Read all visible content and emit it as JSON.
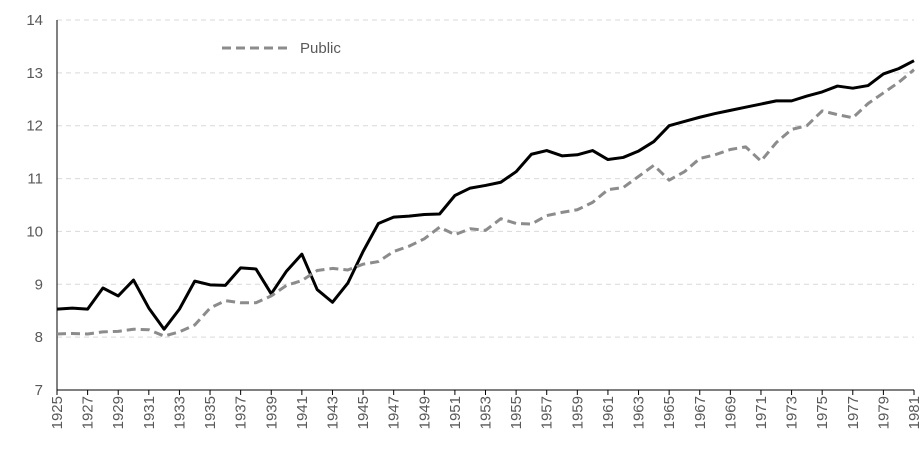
{
  "chart_data": {
    "type": "line",
    "x": [
      1925,
      1926,
      1927,
      1928,
      1929,
      1930,
      1931,
      1932,
      1933,
      1934,
      1935,
      1936,
      1937,
      1938,
      1939,
      1940,
      1941,
      1942,
      1943,
      1944,
      1945,
      1946,
      1947,
      1948,
      1949,
      1950,
      1951,
      1952,
      1953,
      1954,
      1955,
      1956,
      1957,
      1958,
      1959,
      1960,
      1961,
      1962,
      1963,
      1964,
      1965,
      1966,
      1967,
      1968,
      1969,
      1970,
      1971,
      1972,
      1973,
      1974,
      1975,
      1976,
      1977,
      1978,
      1979,
      1980,
      1981
    ],
    "series": [
      {
        "color": "#000000",
        "dashed": false,
        "values": [
          8.53,
          8.55,
          8.53,
          8.93,
          8.78,
          9.08,
          8.55,
          8.15,
          8.53,
          9.06,
          8.99,
          8.98,
          9.31,
          9.29,
          8.82,
          9.25,
          9.57,
          8.9,
          8.66,
          9.02,
          9.62,
          10.15,
          10.27,
          10.29,
          10.32,
          10.33,
          10.68,
          10.82,
          10.87,
          10.93,
          11.13,
          11.46,
          11.53,
          11.43,
          11.45,
          11.53,
          11.36,
          11.4,
          11.52,
          11.7,
          12.0,
          12.08,
          12.16,
          12.23,
          12.29,
          12.35,
          12.41,
          12.47,
          12.47,
          12.56,
          12.64,
          12.75,
          12.71,
          12.76,
          12.98,
          13.08,
          13.23
        ]
      },
      {
        "name": "Public",
        "color": "#8c8c8c",
        "dashed": true,
        "values": [
          8.06,
          8.07,
          8.06,
          8.1,
          8.11,
          8.15,
          8.14,
          8.02,
          8.1,
          8.23,
          8.55,
          8.69,
          8.65,
          8.65,
          8.78,
          8.98,
          9.07,
          9.26,
          9.3,
          9.27,
          9.38,
          9.43,
          9.62,
          9.72,
          9.86,
          10.08,
          9.94,
          10.05,
          10.02,
          10.24,
          10.15,
          10.14,
          10.3,
          10.36,
          10.41,
          10.55,
          10.79,
          10.83,
          11.04,
          11.25,
          10.97,
          11.13,
          11.38,
          11.45,
          11.55,
          11.6,
          11.33,
          11.68,
          11.93,
          12.0,
          12.28,
          12.21,
          12.15,
          12.42,
          12.62,
          12.82,
          13.06
        ]
      }
    ],
    "xlim": [
      1925,
      1981
    ],
    "xticks": [
      1925,
      1927,
      1929,
      1931,
      1933,
      1935,
      1937,
      1939,
      1941,
      1943,
      1945,
      1947,
      1949,
      1951,
      1953,
      1955,
      1957,
      1959,
      1961,
      1963,
      1965,
      1967,
      1969,
      1971,
      1973,
      1975,
      1977,
      1979,
      1981
    ],
    "ylim": [
      7,
      14
    ],
    "yticks": [
      7,
      8,
      9,
      10,
      11,
      12,
      13,
      14
    ],
    "grid": true,
    "legend": "upper left"
  }
}
